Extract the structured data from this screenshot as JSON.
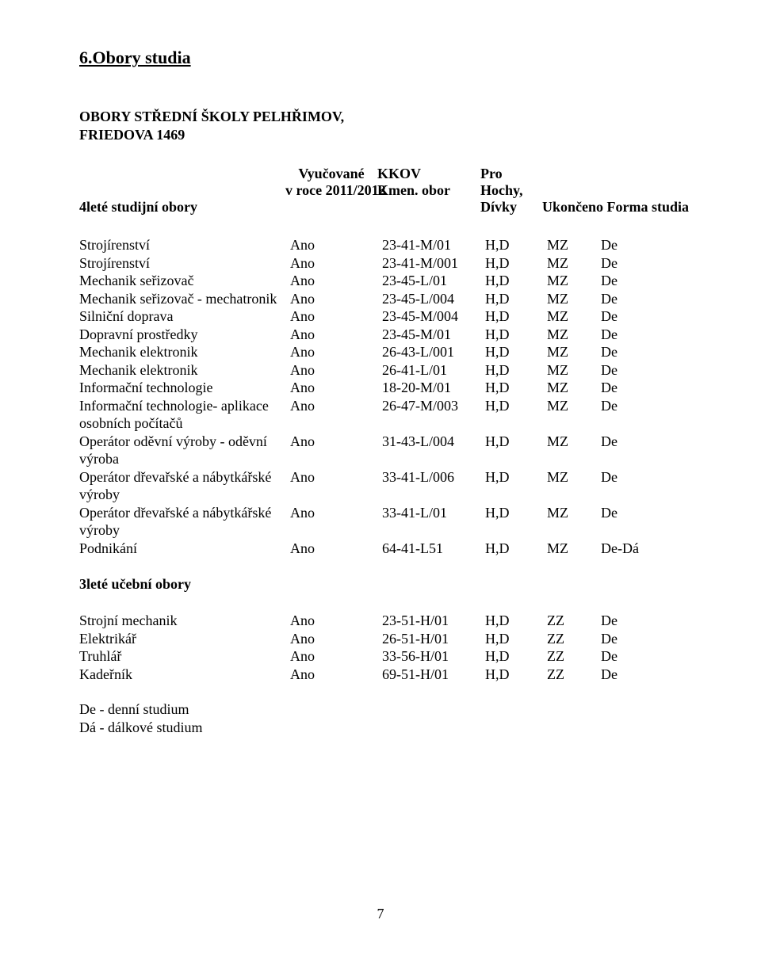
{
  "title": "6.Obory studia",
  "subtitle_line1": "OBORY STŘEDNÍ ŠKOLY PELHŘIMOV,",
  "subtitle_line2": "FRIEDOVA 1469",
  "header": {
    "col1_line1": "4leté studijní obory",
    "col2_line1": "Vyučované",
    "col2_line2": "v roce 2011/2012",
    "col3_line1": "KKOV",
    "col3_line2": "Kmen. obor",
    "col4_line1": "Pro",
    "col4_line2": "Hochy,",
    "col4_line3": "Dívky",
    "col5": "Ukončeno Forma studia"
  },
  "rows4": [
    {
      "name": "Strojírenství",
      "vyuc": "Ano",
      "kkov": "23-41-M/01",
      "pro": "H,D",
      "uk": "MZ",
      "forma": "De"
    },
    {
      "name": "Strojírenství",
      "vyuc": "Ano",
      "kkov": "23-41-M/001",
      "pro": "H,D",
      "uk": "MZ",
      "forma": "De"
    },
    {
      "name": "Mechanik seřizovač",
      "vyuc": "Ano",
      "kkov": "23-45-L/01",
      "pro": "H,D",
      "uk": "MZ",
      "forma": "De"
    },
    {
      "name": "Mechanik seřizovač - mechatronik",
      "vyuc": "Ano",
      "kkov": "23-45-L/004",
      "pro": "H,D",
      "uk": "MZ",
      "forma": "De"
    },
    {
      "name": "Silniční doprava",
      "vyuc": "Ano",
      "kkov": "23-45-M/004",
      "pro": "H,D",
      "uk": "MZ",
      "forma": "De"
    },
    {
      "name": "Dopravní prostředky",
      "vyuc": "Ano",
      "kkov": "23-45-M/01",
      "pro": "H,D",
      "uk": "MZ",
      "forma": "De"
    },
    {
      "name": "Mechanik elektronik",
      "vyuc": "Ano",
      "kkov": "26-43-L/001",
      "pro": "H,D",
      "uk": "MZ",
      "forma": "De"
    },
    {
      "name": "Mechanik elektronik",
      "vyuc": "Ano",
      "kkov": "26-41-L/01",
      "pro": "H,D",
      "uk": "MZ",
      "forma": "De"
    },
    {
      "name": "Informační technologie",
      "vyuc": "Ano",
      "kkov": "18-20-M/01",
      "pro": "H,D",
      "uk": "MZ",
      "forma": "De"
    },
    {
      "name": "Informační technologie- aplikace osobních počítačů",
      "vyuc": "Ano",
      "kkov": "26-47-M/003",
      "pro": "H,D",
      "uk": "MZ",
      "forma": "De"
    },
    {
      "name": "Operátor oděvní výroby - oděvní výroba",
      "vyuc": "Ano",
      "kkov": "31-43-L/004",
      "pro": "H,D",
      "uk": "MZ",
      "forma": "De"
    },
    {
      "name": "Operátor dřevařské a nábytkářské výroby",
      "vyuc": "Ano",
      "kkov": "33-41-L/006",
      "pro": "H,D",
      "uk": "MZ",
      "forma": "De"
    },
    {
      "name": "Operátor dřevařské a nábytkářské výroby",
      "vyuc": "Ano",
      "kkov": "33-41-L/01",
      "pro": "H,D",
      "uk": "MZ",
      "forma": "De"
    },
    {
      "name": "Podnikání",
      "vyuc": "Ano",
      "kkov": "64-41-L51",
      "pro": "H,D",
      "uk": "MZ",
      "forma": "De-Dá"
    }
  ],
  "section3_title": "3leté učební obory",
  "rows3": [
    {
      "name": "Strojní mechanik",
      "vyuc": "Ano",
      "kkov": "23-51-H/01",
      "pro": "H,D",
      "uk": "ZZ",
      "forma": "De"
    },
    {
      "name": "Elektrikář",
      "vyuc": "Ano",
      "kkov": "26-51-H/01",
      "pro": "H,D",
      "uk": "ZZ",
      "forma": "De"
    },
    {
      "name": "Truhlář",
      "vyuc": "Ano",
      "kkov": "33-56-H/01",
      "pro": "H,D",
      "uk": "ZZ",
      "forma": "De"
    },
    {
      "name": "Kadeřník",
      "vyuc": "Ano",
      "kkov": "69-51-H/01",
      "pro": "H,D",
      "uk": "ZZ",
      "forma": "De"
    }
  ],
  "footer_line1": "De - denní studium",
  "footer_line2": "Dá - dálkové studium",
  "page_number": "7"
}
